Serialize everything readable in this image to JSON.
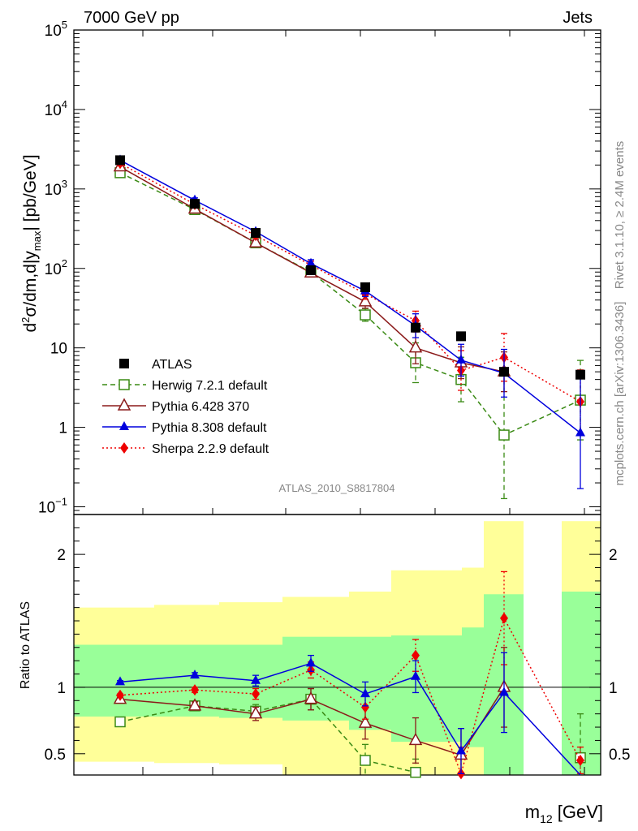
{
  "header": {
    "left": "7000 GeV pp",
    "right": "Jets"
  },
  "side_labels": {
    "rivet": "Rivet 3.1.10, ≥ 2.4M events",
    "mcplots": "mcplots.cern.ch [arXiv:1306.3436]"
  },
  "analysis_id": "ATLAS_2010_S8817804",
  "colors": {
    "atlas": "#000000",
    "herwig": "#3a8a14",
    "pythia6": "#8b1a1a",
    "pythia8": "#0000dd",
    "sherpa": "#ee0000",
    "band_inner": "#99ff99",
    "band_outer": "#ffff99"
  },
  "chart_data": [
    {
      "type": "line",
      "panel": "main",
      "ylabel": "d²σ/dm,d|y_max| [pb/GeV]",
      "yscale": "log",
      "ylim": [
        0.08,
        100000
      ],
      "yticks": [
        {
          "v": 0.1,
          "base": "10",
          "exp": "−1"
        },
        {
          "v": 1,
          "base": "1",
          "exp": ""
        },
        {
          "v": 10,
          "base": "10",
          "exp": ""
        },
        {
          "v": 100,
          "base": "10",
          "exp": "2"
        },
        {
          "v": 1000,
          "base": "10",
          "exp": "3"
        },
        {
          "v": 10000,
          "base": "10",
          "exp": "4"
        },
        {
          "v": 100000,
          "base": "10",
          "exp": "5"
        }
      ],
      "bins": 9,
      "series": [
        {
          "name": "ATLAS",
          "key": "atlas",
          "values": [
            2300,
            650,
            280,
            95,
            58,
            18,
            14,
            5,
            4.6
          ],
          "err": [
            0,
            0,
            0,
            0,
            0,
            0,
            0,
            0,
            0
          ]
        },
        {
          "name": "Herwig 7.2.1 default",
          "key": "herwig",
          "values": [
            1600,
            550,
            210,
            90,
            26,
            6.5,
            4,
            0.8,
            2.2
          ],
          "err": [
            0.04,
            0.04,
            0.04,
            0.05,
            0.08,
            0.25,
            0.28,
            0.8,
            0.5
          ]
        },
        {
          "name": "Pythia 6.428 370",
          "key": "pythia6",
          "values": [
            1900,
            560,
            210,
            88,
            38,
            10,
            6.5,
            5,
            null
          ],
          "err": [
            0.04,
            0.04,
            0.04,
            0.05,
            0.08,
            0.2,
            0.2,
            0.25,
            0
          ]
        },
        {
          "name": "Pythia 8.308 default",
          "key": "pythia8",
          "values": [
            2300,
            720,
            290,
            115,
            52,
            19,
            7,
            4.8,
            0.85
          ],
          "err": [
            0.03,
            0.03,
            0.03,
            0.05,
            0.07,
            0.15,
            0.2,
            0.3,
            0.7
          ]
        },
        {
          "name": "Sherpa 2.2.9 default",
          "key": "sherpa",
          "values": [
            2100,
            640,
            260,
            110,
            48,
            22,
            5.2,
            7.6,
            2.1
          ],
          "err": [
            0.03,
            0.03,
            0.03,
            0.05,
            0.07,
            0.12,
            0.25,
            0.3,
            0.4
          ]
        }
      ]
    },
    {
      "type": "line",
      "panel": "ratio",
      "ylabel": "Ratio to ATLAS",
      "xlabel": "m₁₂ [GeV]",
      "ylim": [
        0.34,
        2.3
      ],
      "yticks": [
        {
          "v": 0.5,
          "label": "0.5"
        },
        {
          "v": 1,
          "label": "1"
        },
        {
          "v": 2,
          "label": "2"
        }
      ],
      "band_inner": [
        [
          0.78,
          1.32
        ],
        [
          0.78,
          1.32
        ],
        [
          0.77,
          1.32
        ],
        [
          0.75,
          1.38
        ],
        [
          0.68,
          1.38
        ],
        [
          0.59,
          1.39
        ],
        [
          0.55,
          1.45
        ],
        [
          0.34,
          1.7
        ],
        [
          0.34,
          1.72
        ]
      ],
      "band_outer": [
        [
          0.44,
          1.6
        ],
        [
          0.43,
          1.62
        ],
        [
          0.42,
          1.64
        ],
        [
          0.34,
          1.68
        ],
        [
          0.34,
          1.72
        ],
        [
          0.34,
          1.88
        ],
        [
          0.34,
          1.9
        ],
        [
          0.34,
          2.25
        ],
        [
          0.34,
          2.25
        ]
      ],
      "bin_visible": [
        true,
        true,
        true,
        true,
        true,
        true,
        true,
        true,
        true
      ],
      "series": [
        {
          "name": "Herwig 7.2.1 default",
          "key": "herwig",
          "values": [
            0.74,
            0.86,
            0.82,
            0.91,
            0.45,
            0.36,
            null,
            null,
            0.47
          ],
          "err": [
            0.01,
            0.03,
            0.05,
            0.08,
            0.12,
            0.1,
            0,
            0,
            0.33
          ]
        },
        {
          "name": "Pythia 6.428 370",
          "key": "pythia6",
          "values": [
            0.91,
            0.86,
            0.8,
            0.91,
            0.73,
            0.6,
            0.49,
            1.0,
            null
          ],
          "err": [
            0.01,
            0.03,
            0.05,
            0.08,
            0.12,
            0.17,
            0.2,
            0.3,
            0
          ]
        },
        {
          "name": "Pythia 8.308 default",
          "key": "pythia8",
          "values": [
            1.04,
            1.09,
            1.05,
            1.18,
            0.95,
            1.08,
            0.52,
            0.96,
            0.1
          ],
          "err": [
            0.01,
            0.02,
            0.04,
            0.06,
            0.09,
            0.12,
            0.17,
            0.3,
            0
          ]
        },
        {
          "name": "Sherpa 2.2.9 default",
          "key": "sherpa",
          "values": [
            0.94,
            0.98,
            0.95,
            1.13,
            0.85,
            1.24,
            0.35,
            1.52,
            0.45
          ],
          "err": [
            0.01,
            0.02,
            0.04,
            0.06,
            0.09,
            0.12,
            0.2,
            0.35,
            0.1
          ]
        }
      ]
    }
  ],
  "legend": [
    {
      "key": "atlas",
      "label": "ATLAS"
    },
    {
      "key": "herwig",
      "label": "Herwig 7.2.1 default"
    },
    {
      "key": "pythia6",
      "label": "Pythia 6.428 370"
    },
    {
      "key": "pythia8",
      "label": "Pythia 8.308 default"
    },
    {
      "key": "sherpa",
      "label": "Sherpa 2.2.9 default"
    }
  ],
  "legend_placement": "lower-left"
}
